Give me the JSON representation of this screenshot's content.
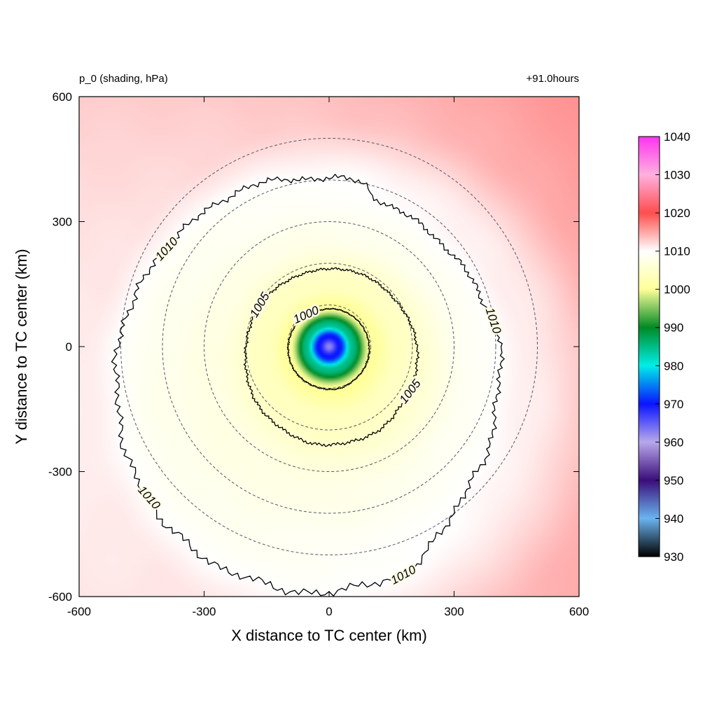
{
  "header": {
    "left_label": "p_0 (shading, hPa)",
    "right_label": "+91.0hours"
  },
  "chart_data": {
    "type": "heatmap",
    "title": "",
    "xlabel": "X distance to TC center (km)",
    "ylabel": "Y distance to TC center (km)",
    "xlim": [
      -600,
      600
    ],
    "ylim": [
      -600,
      600
    ],
    "x_ticks": [
      -600,
      -300,
      0,
      300,
      600
    ],
    "y_ticks": [
      -600,
      -300,
      0,
      300,
      600
    ],
    "colorbar": {
      "min": 930,
      "max": 1040,
      "ticks": [
        930,
        940,
        950,
        960,
        970,
        980,
        990,
        1000,
        1010,
        1020,
        1030,
        1040
      ],
      "stops": [
        {
          "value": 930,
          "color": "#000000"
        },
        {
          "value": 940,
          "color": "#6ab4f0"
        },
        {
          "value": 950,
          "color": "#3a0d7a"
        },
        {
          "value": 960,
          "color": "#b8a8ec"
        },
        {
          "value": 970,
          "color": "#0a14ff"
        },
        {
          "value": 980,
          "color": "#00eee8"
        },
        {
          "value": 990,
          "color": "#008a24"
        },
        {
          "value": 1000,
          "color": "#ffff99"
        },
        {
          "value": 1010,
          "color": "#ffffff"
        },
        {
          "value": 1020,
          "color": "#ff4d4d"
        },
        {
          "value": 1030,
          "color": "#ffb0e0"
        },
        {
          "value": 1040,
          "color": "#ff33ee"
        }
      ]
    },
    "field": {
      "center_pressure": 962,
      "eye_center_km": [
        0,
        0
      ]
    },
    "contours": [
      {
        "level": 1000,
        "label": "1000"
      },
      {
        "level": 1005,
        "label": "1005"
      },
      {
        "level": 1010,
        "label": "1010"
      }
    ],
    "range_rings_km": [
      100,
      200,
      300,
      400,
      500
    ],
    "range_ring_style": "dashed"
  }
}
